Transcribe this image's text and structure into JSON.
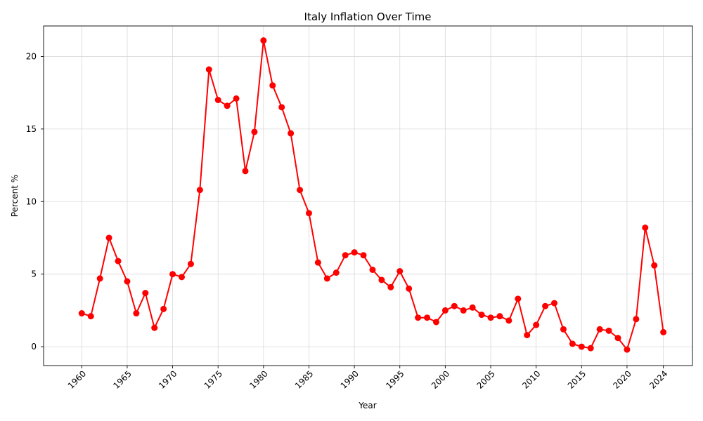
{
  "chart_data": {
    "type": "line",
    "title": "Italy Inflation Over Time",
    "xlabel": "Year",
    "ylabel": "Percent %",
    "xlim": [
      1955.8,
      2027.2
    ],
    "ylim": [
      -1.3,
      22.1
    ],
    "xticks": [
      1960,
      1965,
      1970,
      1975,
      1980,
      1985,
      1990,
      1995,
      2000,
      2005,
      2010,
      2015,
      2020,
      2024
    ],
    "yticks": [
      0,
      5,
      10,
      15,
      20
    ],
    "grid": true,
    "line_color": "#ff0000",
    "series": [
      {
        "x": [
          1960,
          1961,
          1962,
          1963,
          1964,
          1965,
          1966,
          1967,
          1968,
          1969,
          1970,
          1971,
          1972,
          1973,
          1974,
          1975,
          1976,
          1977,
          1978,
          1979,
          1980,
          1981,
          1982,
          1983,
          1984,
          1985,
          1986,
          1987,
          1988,
          1989,
          1990,
          1991,
          1992,
          1993,
          1994,
          1995,
          1996,
          1997,
          1998,
          1999,
          2000,
          2001,
          2002,
          2003,
          2004,
          2005,
          2006,
          2007,
          2008,
          2009,
          2010,
          2011,
          2012,
          2013,
          2014,
          2015,
          2016,
          2017,
          2018,
          2019,
          2020,
          2021,
          2022,
          2023,
          2024
        ],
        "values": [
          2.3,
          2.1,
          4.7,
          7.5,
          5.9,
          4.5,
          2.3,
          3.7,
          1.3,
          2.6,
          5.0,
          4.8,
          5.7,
          10.8,
          19.1,
          17.0,
          16.6,
          17.1,
          12.1,
          14.8,
          21.1,
          18.0,
          16.5,
          14.7,
          10.8,
          9.2,
          5.8,
          4.7,
          5.1,
          6.3,
          6.5,
          6.3,
          5.3,
          4.6,
          4.1,
          5.2,
          4.0,
          2.0,
          2.0,
          1.7,
          2.5,
          2.8,
          2.5,
          2.7,
          2.2,
          2.0,
          2.1,
          1.8,
          3.3,
          0.8,
          1.5,
          2.8,
          3.0,
          1.2,
          0.2,
          0.0,
          -0.1,
          1.2,
          1.1,
          0.6,
          -0.2,
          1.9,
          8.2,
          5.6,
          1.0
        ]
      }
    ]
  }
}
